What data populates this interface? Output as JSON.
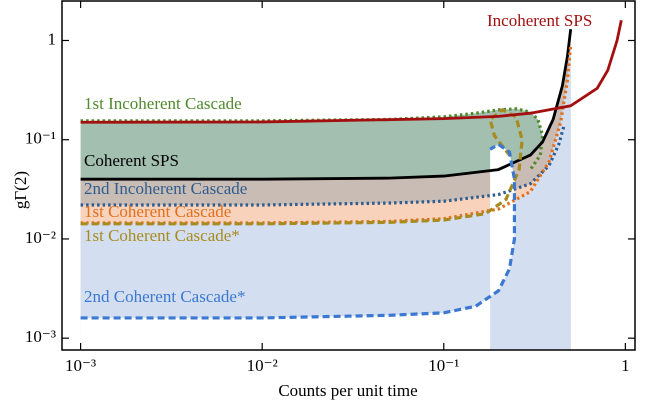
{
  "chart_data": {
    "type": "line",
    "xlabel": "Counts per unit time",
    "ylabel": "gΓ(2)",
    "xscale": "log",
    "yscale": "log",
    "xlim": [
      0.00079,
      1.13
    ],
    "ylim": [
      0.00076,
      2.5
    ],
    "xticks": [
      {
        "value": 0.001,
        "label": "10⁻³"
      },
      {
        "value": 0.01,
        "label": "10⁻²"
      },
      {
        "value": 0.1,
        "label": "10⁻¹"
      },
      1
    ],
    "yticks": [
      {
        "value": 0.001,
        "label": "10⁻³"
      },
      {
        "value": 0.01,
        "label": "10⁻²"
      },
      {
        "value": 0.1,
        "label": "10⁻¹"
      },
      1
    ],
    "series": [
      {
        "name": "1st Incoherent Cascade",
        "color": "#4f8a2f",
        "style": "dotted",
        "fill": "#a3bfb0",
        "x": [
          0.001,
          0.01,
          0.05,
          0.1,
          0.15,
          0.2,
          0.25,
          0.3,
          0.33,
          0.35,
          0.34,
          0.3
        ],
        "values": [
          0.155,
          0.155,
          0.16,
          0.17,
          0.185,
          0.2,
          0.205,
          0.19,
          0.16,
          0.11,
          0.07,
          0.05
        ]
      },
      {
        "name": "Coherent SPS",
        "color": "#000000",
        "style": "solid",
        "fill": "#c9bcb4",
        "x": [
          0.001,
          0.01,
          0.05,
          0.1,
          0.2,
          0.3,
          0.35,
          0.4,
          0.45,
          0.48,
          0.5
        ],
        "values": [
          0.04,
          0.04,
          0.041,
          0.043,
          0.05,
          0.07,
          0.095,
          0.16,
          0.35,
          0.7,
          1.3
        ]
      },
      {
        "name": "2nd Incoherent Cascade",
        "color": "#2e5d8f",
        "style": "dotted",
        "fill": "#f9d2bb",
        "x": [
          0.001,
          0.01,
          0.05,
          0.1,
          0.2,
          0.3,
          0.38,
          0.43,
          0.46
        ],
        "values": [
          0.022,
          0.022,
          0.023,
          0.024,
          0.028,
          0.036,
          0.055,
          0.09,
          0.14
        ]
      },
      {
        "name": "1st Coherent Cascade",
        "color": "#e0701f",
        "style": "dotted",
        "fill": "#d3dff1",
        "x": [
          0.001,
          0.01,
          0.05,
          0.1,
          0.2,
          0.3,
          0.38,
          0.44,
          0.48,
          0.5
        ],
        "values": [
          0.0145,
          0.0145,
          0.015,
          0.016,
          0.02,
          0.03,
          0.06,
          0.15,
          0.4,
          0.9
        ]
      },
      {
        "name": "1st Coherent Cascade*",
        "color": "#a88b1f",
        "style": "dashed",
        "x": [
          0.001,
          0.01,
          0.05,
          0.1,
          0.17,
          0.22,
          0.26,
          0.27,
          0.25,
          0.21,
          0.18,
          0.19,
          0.23
        ],
        "values": [
          0.0142,
          0.0142,
          0.0147,
          0.0155,
          0.018,
          0.025,
          0.05,
          0.1,
          0.17,
          0.2,
          0.16,
          0.11,
          0.07
        ]
      },
      {
        "name": "2nd Coherent Cascade*",
        "color": "#3b78d1",
        "style": "dashed",
        "fill": "#ffffff",
        "x": [
          0.001,
          0.01,
          0.05,
          0.1,
          0.15,
          0.2,
          0.23,
          0.245,
          0.245,
          0.23,
          0.2,
          0.18
        ],
        "values": [
          0.0016,
          0.0016,
          0.0017,
          0.0018,
          0.0021,
          0.003,
          0.005,
          0.01,
          0.04,
          0.075,
          0.09,
          0.08
        ]
      },
      {
        "name": "Incoherent SPS",
        "color": "#a30f0f",
        "style": "solid",
        "x": [
          0.001,
          0.01,
          0.1,
          0.2,
          0.3,
          0.5,
          0.7,
          0.8,
          0.9,
          0.95
        ],
        "values": [
          0.15,
          0.151,
          0.163,
          0.172,
          0.185,
          0.22,
          0.33,
          0.5,
          1.0,
          1.6
        ]
      }
    ]
  }
}
